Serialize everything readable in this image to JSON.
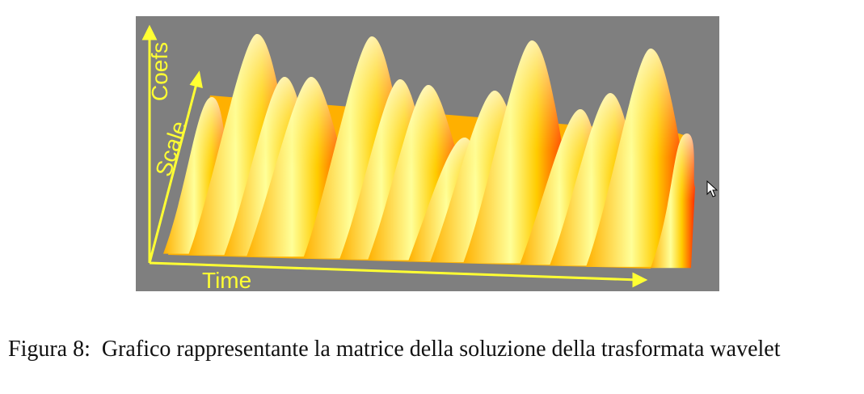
{
  "figure": {
    "axis_labels": {
      "coefs": "Coefs",
      "scale": "Scale",
      "time": "Time"
    }
  },
  "caption": {
    "label": "Figura 8:",
    "text": "Grafico rappresentante la matrice della soluzione della trasformata wavelet"
  }
}
